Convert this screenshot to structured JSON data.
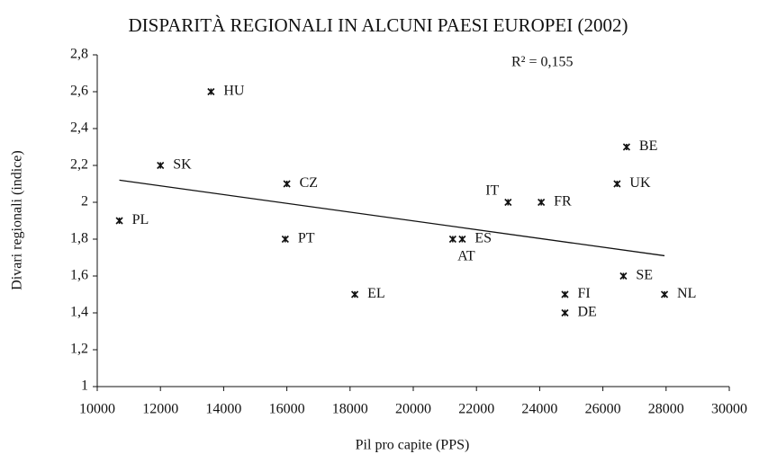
{
  "chart_data": {
    "type": "scatter",
    "title": "DISPARITÀ REGIONALI IN ALCUNI PAESI EUROPEI (2002)",
    "x_label": "Pil pro capite (PPS)",
    "y_label": "Divari regionali (indice)",
    "annotation": "R² = 0,155",
    "labels": [
      "PL",
      "HU",
      "SK",
      "CZ",
      "PT",
      "EL",
      "AT",
      "ES",
      "IT",
      "FR",
      "SE",
      "FI",
      "DE",
      "UK",
      "BE",
      "NL"
    ],
    "x": [
      10700,
      13600,
      12000,
      16000,
      15950,
      18150,
      21250,
      21550,
      23000,
      24050,
      26650,
      24800,
      24800,
      26450,
      26750,
      27950
    ],
    "values": [
      1.9,
      2.6,
      2.2,
      2.1,
      1.8,
      1.5,
      1.8,
      1.8,
      2.0,
      2.0,
      1.6,
      1.5,
      1.4,
      2.1,
      2.3,
      1.5
    ],
    "trend": {
      "x": [
        10700,
        27950
      ],
      "values": [
        2.12,
        1.71
      ]
    },
    "color": "#111111",
    "xlim": [
      10000,
      30000
    ],
    "xticks": [
      10000,
      12000,
      14000,
      16000,
      18000,
      20000,
      22000,
      24000,
      26000,
      28000,
      30000
    ],
    "ylim": [
      1,
      2.8
    ],
    "yticks": [
      1,
      {
        "value": 1.2,
        "label": "1,2"
      },
      {
        "value": 1.4,
        "label": "1,4"
      },
      {
        "value": 1.6,
        "label": "1,6"
      },
      {
        "value": 1.8,
        "label": "1,8"
      },
      2,
      {
        "value": 2.2,
        "label": "2,2"
      },
      {
        "value": 2.4,
        "label": "2,4"
      },
      {
        "value": 2.6,
        "label": "2,6"
      },
      {
        "value": 2.8,
        "label": "2,8"
      }
    ],
    "grid": false
  }
}
